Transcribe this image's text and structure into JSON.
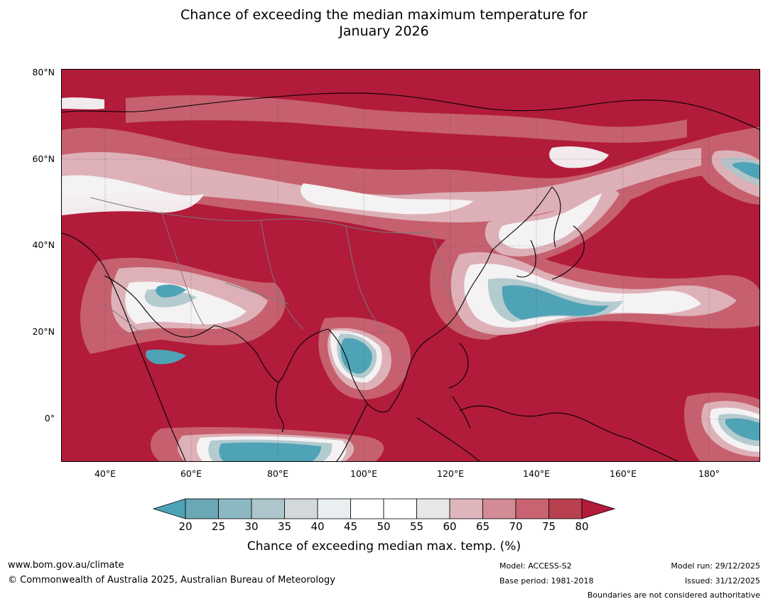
{
  "title": {
    "line1": "Chance of exceeding the median maximum temperature for",
    "line2": "January 2026"
  },
  "map": {
    "region": "Asia",
    "lat_labels": [
      "80°N",
      "60°N",
      "40°N",
      "20°N",
      "0°"
    ],
    "lon_labels": [
      "40°E",
      "60°E",
      "80°E",
      "100°E",
      "120°E",
      "140°E",
      "160°E",
      "180°"
    ],
    "lat_range": [
      -10,
      80
    ],
    "lon_range": [
      30,
      192
    ],
    "grid": "dotted"
  },
  "colorbar": {
    "ticks": [
      "20",
      "25",
      "30",
      "35",
      "40",
      "45",
      "50",
      "55",
      "60",
      "65",
      "70",
      "75",
      "80"
    ],
    "colors": [
      "#6aa8b5",
      "#8bb8c3",
      "#adc6cc",
      "#d3d9da",
      "#e9eff1",
      "#ffffff",
      "#ffffff",
      "#e8e8e8",
      "#dfb5bc",
      "#d38b95",
      "#c86471",
      "#b9404f"
    ],
    "under_color": "#4fa3b6",
    "over_color": "#b21b3a",
    "label": "Chance of exceeding median max. temp. (%)"
  },
  "footer": {
    "website": "www.bom.gov.au/climate",
    "copyright": "© Commonwealth of Australia 2025, Australian Bureau of Meteorology",
    "model": "Model: ACCESS-S2",
    "base_period": "Base period: 1981-2018",
    "model_run": "Model run: 29/12/2025",
    "issued": "Issued: 31/12/2025",
    "disclaimer": "Boundaries are not considered authoritative"
  }
}
